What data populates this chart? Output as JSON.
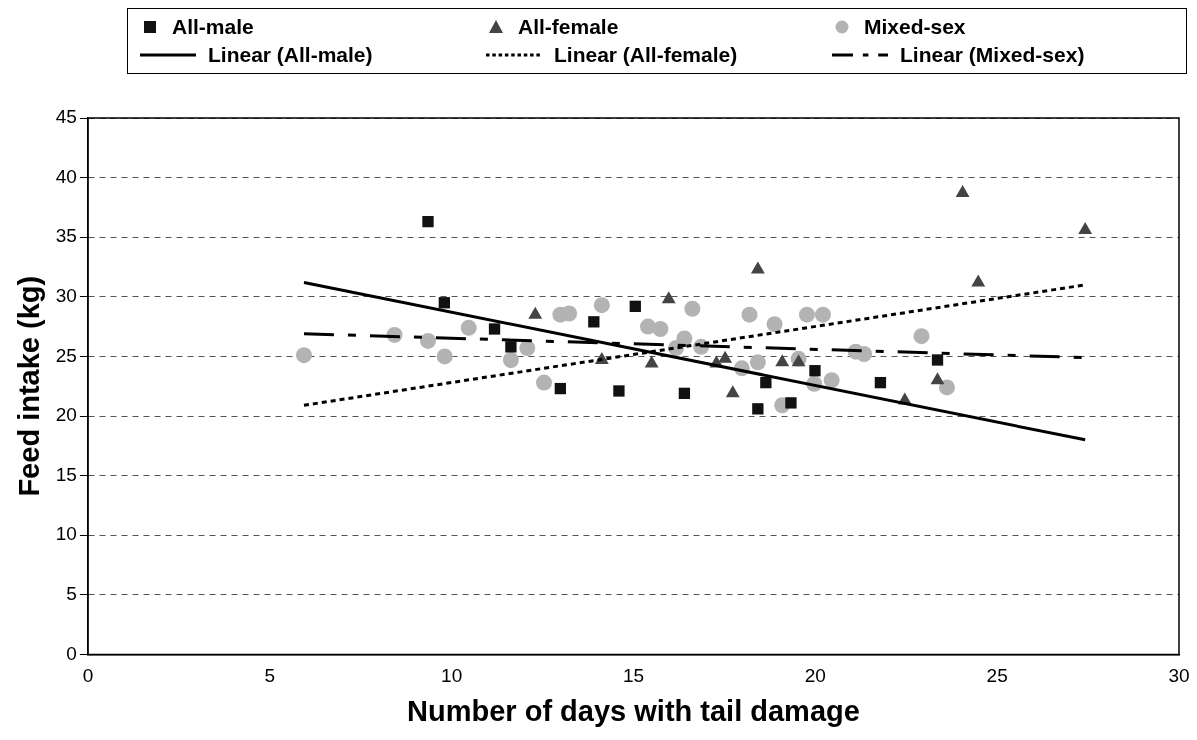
{
  "chart_data": {
    "type": "scatter",
    "xlabel": "Number of days with tail damage",
    "ylabel": "Feed intake (kg)",
    "xlim": [
      0,
      30
    ],
    "xticks": [
      0,
      5,
      10,
      15,
      20,
      25,
      30
    ],
    "ylim": [
      0,
      45
    ],
    "yticks": [
      0,
      5,
      10,
      15,
      20,
      25,
      30,
      35,
      40,
      45
    ],
    "grid": "y",
    "legend": "top",
    "series": [
      {
        "name": "All-male",
        "marker": "square",
        "color": "#111111",
        "x": [
          9.35,
          9.8,
          11.18,
          11.63,
          12.99,
          13.91,
          14.6,
          15.05,
          16.4,
          18.42,
          18.64,
          19.33,
          19.99,
          21.79,
          23.36
        ],
        "values": [
          36.3,
          29.5,
          27.3,
          25.8,
          22.3,
          27.9,
          22.1,
          29.2,
          21.9,
          20.6,
          22.8,
          21.1,
          23.8,
          22.8,
          24.7
        ]
      },
      {
        "name": "All-female",
        "marker": "triangle",
        "color": "#444444",
        "x": [
          12.3,
          14.13,
          15.5,
          15.97,
          17.28,
          17.52,
          17.73,
          18.42,
          19.09,
          19.54,
          22.46,
          23.36,
          24.05,
          24.48,
          27.42
        ],
        "values": [
          28.5,
          24.7,
          24.4,
          29.8,
          24.4,
          24.8,
          21.9,
          32.3,
          24.5,
          24.5,
          21.3,
          23.0,
          38.7,
          31.2,
          35.6
        ]
      },
      {
        "name": "Mixed-sex",
        "marker": "circle",
        "color": "#b3b3b3",
        "x": [
          5.94,
          8.43,
          9.35,
          9.81,
          10.47,
          11.63,
          12.08,
          12.54,
          12.99,
          13.23,
          14.13,
          15.4,
          15.74,
          16.17,
          16.4,
          16.62,
          16.86,
          17.98,
          18.19,
          18.42,
          18.88,
          19.09,
          19.54,
          19.77,
          19.97,
          20.21,
          20.45,
          21.11,
          21.34,
          22.92,
          23.62
        ],
        "values": [
          25.1,
          26.8,
          26.3,
          25.0,
          27.4,
          24.7,
          25.7,
          22.8,
          28.5,
          28.6,
          29.3,
          27.5,
          27.3,
          25.7,
          26.5,
          29.0,
          25.8,
          24.0,
          28.5,
          24.5,
          27.7,
          20.9,
          24.8,
          28.5,
          22.7,
          28.5,
          23.0,
          25.4,
          25.2,
          26.7,
          22.4
        ]
      },
      {
        "name": "Linear (All-male)",
        "type": "line",
        "line_style": "solid",
        "marker": "none",
        "color": "#000000",
        "x": [
          5.94,
          27.42
        ],
        "values": [
          31.2,
          18.0
        ]
      },
      {
        "name": "Linear (All-female)",
        "type": "line",
        "line_style": "dotted",
        "marker": "none",
        "color": "#000000",
        "x": [
          5.94,
          27.42
        ],
        "values": [
          20.9,
          31.0
        ]
      },
      {
        "name": "Linear (Mixed-sex)",
        "type": "line",
        "line_style": "dashed",
        "marker": "none",
        "color": "#000000",
        "x": [
          5.94,
          27.42
        ],
        "values": [
          26.9,
          24.9
        ]
      }
    ]
  }
}
